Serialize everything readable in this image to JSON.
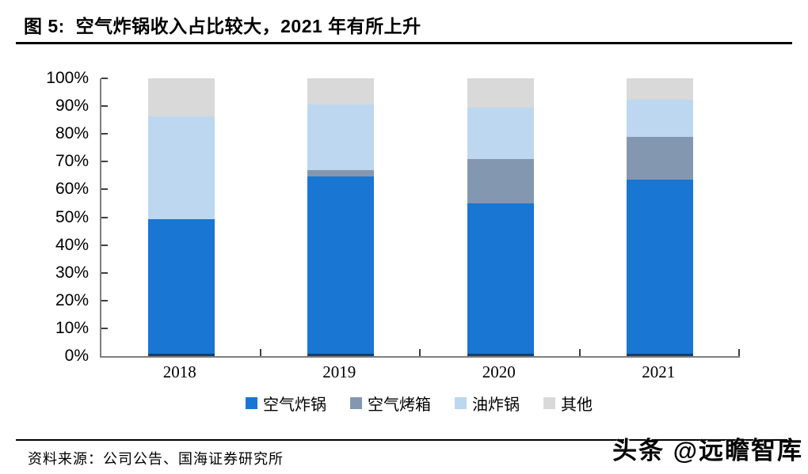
{
  "page": {
    "title": "图 5:  空气炸锅收入占比较大，2021 年有所上升",
    "source_label": "资料来源：公司公告、国海证券研究所",
    "watermark": "头条 @远瞻智库"
  },
  "chart_data": {
    "type": "bar",
    "stacked": true,
    "title": "图 5:  空气炸锅收入占比较大，2021 年有所上升",
    "categories": [
      "2018",
      "2019",
      "2020",
      "2021"
    ],
    "series": [
      {
        "name": "空气炸锅",
        "color": "#1976D2",
        "values": [
          49.2,
          64.8,
          55.1,
          63.4
        ]
      },
      {
        "name": "空气烤箱",
        "color": "#8497B0",
        "values": [
          0,
          2.2,
          15.8,
          15.4
        ]
      },
      {
        "name": "油炸锅",
        "color": "#BDD7F0",
        "values": [
          37.1,
          23.7,
          18.6,
          13.6
        ]
      },
      {
        "name": "其他",
        "color": "#D9D9D9",
        "values": [
          13.7,
          9.3,
          10.5,
          7.6
        ]
      }
    ],
    "xlabel": "",
    "ylabel": "",
    "ylim": [
      0,
      100
    ],
    "ytick_step": 10,
    "yticks": [
      "0%",
      "10%",
      "20%",
      "30%",
      "40%",
      "50%",
      "60%",
      "70%",
      "80%",
      "90%",
      "100%"
    ],
    "grid": false,
    "legend_position": "bottom",
    "unit": "percent"
  }
}
